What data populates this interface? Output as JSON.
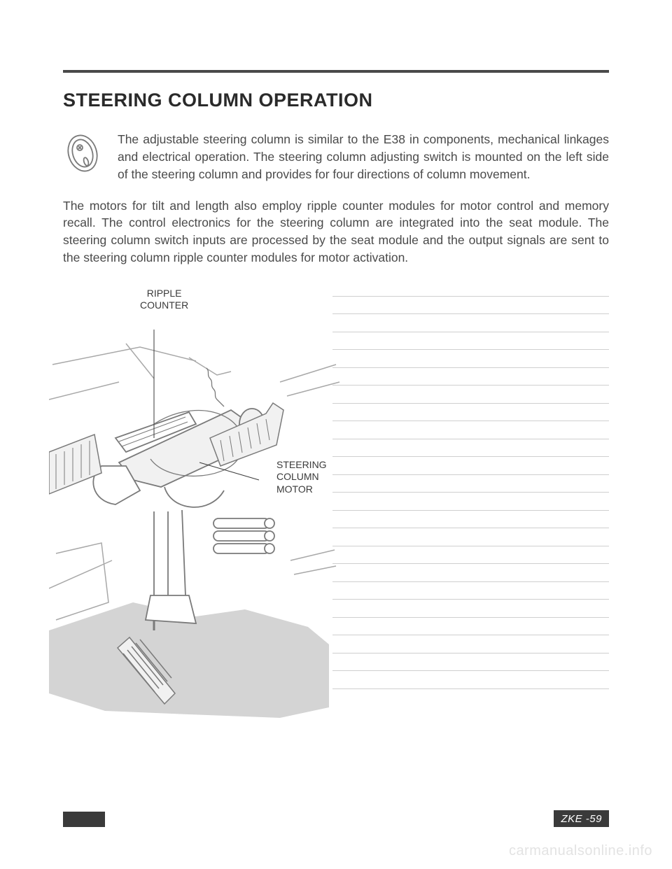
{
  "title": "STEERING COLUMN OPERATION",
  "intro": "The adjustable steering column is similar to the E38  in components, mechanical linkages and electrical operation. The steering column adjusting switch is mounted on the left side of the steering column and provides for four directions of column movement.",
  "body": "The motors for tilt and length also employ ripple counter modules for motor control and memory recall. The control electronics for the steering column are integrated into the seat module. The steering column switch inputs are processed by the seat module and the output signals are sent to the steering column ripple counter modules for motor activation.",
  "labels": {
    "ripple_line1": "RIPPLE",
    "ripple_line2": "COUNTER",
    "motor_line1": "STEERING",
    "motor_line2": "COLUMN",
    "motor_line3": "MOTOR"
  },
  "footer": "ZKE -59",
  "watermark": "carmanualsonline.info",
  "notes_line_count": 23,
  "diagram": {
    "type": "technical-illustration",
    "stroke_color": "#7a7a7a",
    "stroke_thin": "#a8a8a8",
    "fill_grey": "#d4d4d4",
    "fill_light": "#f1f1f1",
    "background": "#ffffff"
  }
}
